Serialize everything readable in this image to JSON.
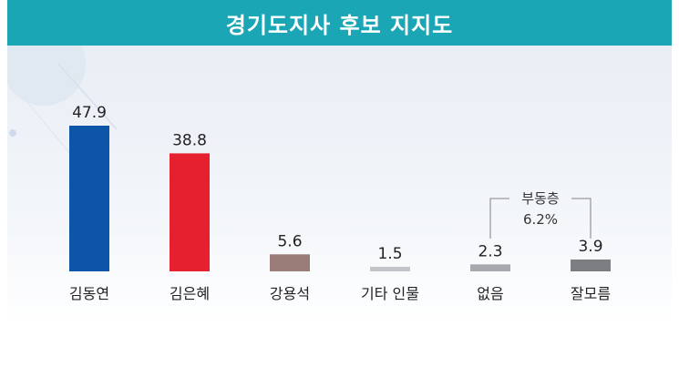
{
  "title": "경기도지사 후보 지지도",
  "colors": {
    "title_bg": "#1aa6b4",
    "bar_blue": "#0c55a8",
    "bar_red": "#e52130",
    "bar_brown": "#9a7c78",
    "bar_light_gray": "#c2c4c9",
    "bar_mid_gray": "#a6a8ad",
    "bar_dark_gray": "#7d7e82"
  },
  "chart_data": {
    "type": "bar",
    "title": "경기도지사 후보 지지도",
    "categories": [
      "김동연",
      "김은혜",
      "강용석",
      "기타 인물",
      "없음",
      "잘모름"
    ],
    "values": [
      47.9,
      38.8,
      5.6,
      1.5,
      2.3,
      3.9
    ],
    "value_labels": [
      "47.9",
      "38.8",
      "5.6",
      "1.5",
      "2.3",
      "3.9"
    ],
    "ylim": [
      0,
      50
    ],
    "grid": false,
    "annotation": {
      "label": "부동층",
      "value": "6.2%",
      "spans": [
        "없음",
        "잘모름"
      ]
    }
  }
}
